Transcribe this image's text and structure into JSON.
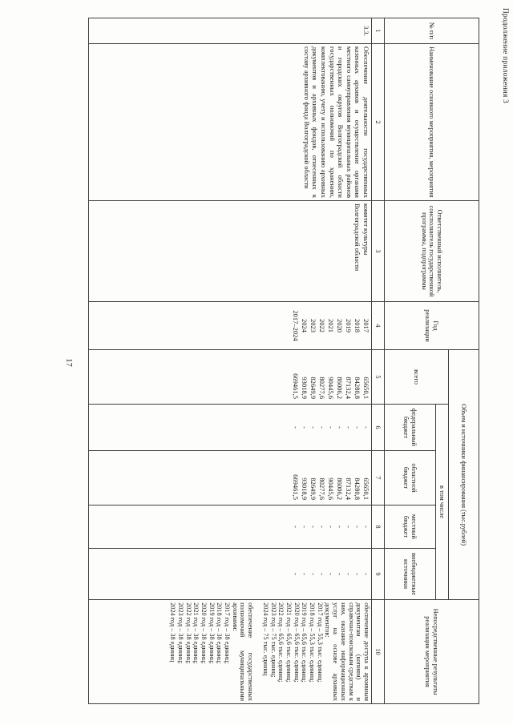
{
  "page": {
    "appendix_label": "Продолжение приложения 3",
    "page_number": "17"
  },
  "table": {
    "headers": {
      "num": "№ п/п",
      "name": "Наименование основного мероприятия, мероприятия",
      "executor": "Ответственный исполнитель, соисполнитель государственной программы, подпрограммы",
      "year": "Год реализации",
      "finance": "Объем и источники финансирования (тыс.рублей)",
      "total": "всего",
      "including": "в том числе",
      "federal": "федеральный бюджет",
      "oblast": "областной бюджет",
      "local": "местный бюджет",
      "extra": "внебюджетные источники",
      "results": "Непосредственные результаты реализации мероприятия"
    },
    "column_numbers": [
      "1",
      "2",
      "3",
      "4",
      "5",
      "6",
      "7",
      "8",
      "9",
      "10"
    ],
    "row": {
      "num": "3.3.",
      "name": "Обеспечение деятельности государственных казенных архивов и осуществление органами местного самоуправления муниципальных районов и городских округов Волгоградской области государственных полномочий по хранению, комплектованию, учету и использованию архивных документов и архивных фондов, отнесенных к составу архивного фонда Волгоградской области",
      "executor": "комитет культуры Волгоградской области",
      "years": [
        "2017",
        "2018",
        "2019",
        "2020",
        "2021",
        "2022",
        "2023",
        "2024",
        "2017–2024"
      ],
      "total": [
        "65650,1",
        "84280,8",
        "87132,4",
        "86006,2",
        "90445,6",
        "80277,6",
        "82649,9",
        "93018,9",
        "669461,5"
      ],
      "federal": [
        "-",
        "-",
        "-",
        "-",
        "-",
        "-",
        "-",
        "-",
        "-"
      ],
      "oblast": [
        "65650,1",
        "84280,8",
        "87132,4",
        "86006,2",
        "90445,6",
        "80277,6",
        "82649,9",
        "93018,9",
        "669461,5"
      ],
      "local": [
        "-",
        "-",
        "-",
        "-",
        "-",
        "-",
        "-",
        "-",
        "-"
      ],
      "extra": [
        "-",
        "-",
        "-",
        "-",
        "-",
        "-",
        "-",
        "-",
        "-"
      ],
      "results": {
        "p1_intro": "обеспечение доступа к архивным документам (копиям) и справочно-поисковым средствам к ним, оказание информационных услуг на основе архивных документов:",
        "p1_lines": [
          "2017 год – 55,3 тыс. единиц;",
          "2018 год – 55,3 тыс. единиц;",
          "2019 год – 65,6 тыс. единиц;",
          "2020 год – 65,6 тыс. единиц;",
          "2021 год – 65,6 тыс. единиц;",
          "2022 год – 65,6 тыс. единиц;",
          "2023 год – 75 тыс. единиц;",
          "2024 год – 75 тыс. единиц"
        ],
        "p2_intro": "обеспечение государственных полномочий муниципальными архивами:",
        "p2_lines": [
          "2017 год – 38 единиц;",
          "2018 год – 38 единиц;",
          "2019 год – 38 единиц;",
          "2020 год – 38 единиц;",
          "2021 год – 38 единиц;",
          "2022 год – 38 единиц;",
          "2023 год – 38 единиц;",
          "2024 год – 38 единиц"
        ]
      }
    }
  }
}
